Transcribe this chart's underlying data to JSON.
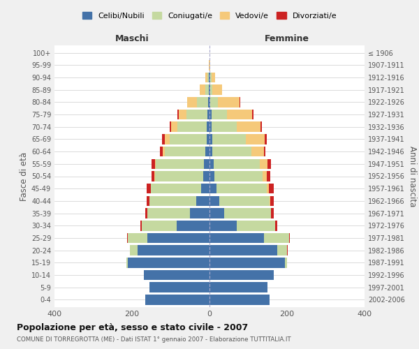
{
  "age_groups": [
    "0-4",
    "5-9",
    "10-14",
    "15-19",
    "20-24",
    "25-29",
    "30-34",
    "35-39",
    "40-44",
    "45-49",
    "50-54",
    "55-59",
    "60-64",
    "65-69",
    "70-74",
    "75-79",
    "80-84",
    "85-89",
    "90-94",
    "95-99",
    "100+"
  ],
  "birth_years": [
    "2002-2006",
    "1997-2001",
    "1992-1996",
    "1987-1991",
    "1982-1986",
    "1977-1981",
    "1972-1976",
    "1967-1971",
    "1962-1966",
    "1957-1961",
    "1952-1956",
    "1947-1951",
    "1942-1946",
    "1937-1941",
    "1932-1936",
    "1927-1931",
    "1922-1926",
    "1917-1921",
    "1912-1916",
    "1907-1911",
    "≤ 1906"
  ],
  "male_celibi": [
    165,
    155,
    170,
    210,
    185,
    160,
    85,
    50,
    35,
    22,
    16,
    14,
    10,
    8,
    7,
    5,
    3,
    2,
    2,
    0,
    0
  ],
  "male_coniugati": [
    0,
    0,
    0,
    5,
    20,
    50,
    90,
    110,
    120,
    130,
    125,
    125,
    105,
    95,
    75,
    55,
    30,
    8,
    3,
    0,
    0
  ],
  "male_vedovi": [
    0,
    0,
    0,
    0,
    0,
    0,
    0,
    0,
    0,
    0,
    1,
    2,
    5,
    12,
    18,
    20,
    25,
    15,
    5,
    1,
    0
  ],
  "male_divorziati": [
    0,
    0,
    0,
    0,
    1,
    2,
    4,
    6,
    7,
    10,
    8,
    9,
    8,
    8,
    3,
    2,
    0,
    0,
    0,
    0,
    0
  ],
  "female_nubili": [
    155,
    150,
    165,
    195,
    175,
    140,
    70,
    38,
    25,
    18,
    12,
    10,
    8,
    8,
    6,
    5,
    2,
    2,
    2,
    0,
    0
  ],
  "female_coniugate": [
    0,
    0,
    0,
    5,
    25,
    65,
    100,
    120,
    130,
    130,
    125,
    120,
    100,
    85,
    65,
    40,
    20,
    5,
    3,
    0,
    0
  ],
  "female_vedove": [
    0,
    0,
    0,
    0,
    0,
    0,
    0,
    1,
    2,
    5,
    10,
    20,
    32,
    50,
    60,
    65,
    55,
    25,
    10,
    1,
    0
  ],
  "female_divorziate": [
    0,
    0,
    0,
    0,
    1,
    2,
    5,
    6,
    8,
    12,
    10,
    9,
    5,
    5,
    5,
    4,
    2,
    0,
    0,
    0,
    0
  ],
  "color_celibi": "#4472a8",
  "color_coniugati": "#c5d9a0",
  "color_vedovi": "#f5c97a",
  "color_divorziati": "#cc2222",
  "xlim": 400,
  "title_main": "Popolazione per età, sesso e stato civile - 2007",
  "title_sub": "COMUNE DI TORREGROTTA (ME) - Dati ISTAT 1° gennaio 2007 - Elaborazione TUTTITALIA.IT",
  "ylabel_left": "Fasce di età",
  "ylabel_right": "Anni di nascita",
  "xlabel_maschi": "Maschi",
  "xlabel_femmine": "Femmine",
  "bg_color": "#f0f0f0",
  "plot_bg": "#ffffff"
}
